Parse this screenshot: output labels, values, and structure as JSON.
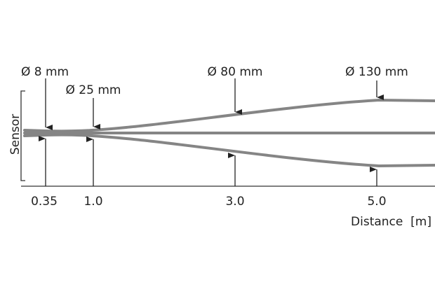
{
  "sensor_label": "Sensor",
  "diameters": [
    "Ø 8 mm",
    "Ø 25 mm",
    "Ø 80 mm",
    "Ø 130 mm"
  ],
  "distances": [
    "0.35",
    "1.0",
    "3.0",
    "5.0"
  ],
  "axis_label": "Distance  [m]"
}
